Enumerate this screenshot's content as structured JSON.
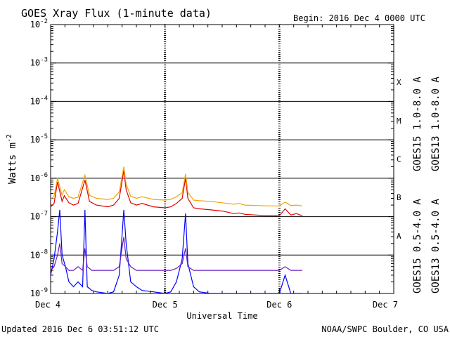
{
  "chart_data": {
    "type": "line",
    "title": "GOES Xray Flux (1-minute data)",
    "begin_label": "Begin:  2016 Dec 4 0000 UTC",
    "xlabel": "Universal Time",
    "ylabel": "Watts m",
    "ylabel_exponent": "-2",
    "x_ticks": [
      "Dec 4",
      "Dec 5",
      "Dec 6",
      "Dec 7"
    ],
    "x_range_days": [
      0,
      3
    ],
    "y_scale": "log",
    "y_range": [
      1e-09,
      0.01
    ],
    "y_tick_base": "10",
    "y_tick_exponents": [
      "-9",
      "-8",
      "-7",
      "-6",
      "-5",
      "-4",
      "-3",
      "-2"
    ],
    "flare_classes": [
      "A",
      "B",
      "C",
      "M",
      "X"
    ],
    "grid": true,
    "updated_label": "Updated 2016 Dec  6 03:51:12 UTC",
    "source_label": "NOAA/SWPC Boulder, CO USA",
    "series": [
      {
        "name": "GOES15 1.0-8.0 A",
        "color": "#e00000",
        "x": [
          0,
          0.03,
          0.06,
          0.1,
          0.12,
          0.16,
          0.2,
          0.24,
          0.3,
          0.34,
          0.4,
          0.5,
          0.55,
          0.6,
          0.64,
          0.66,
          0.7,
          0.75,
          0.8,
          0.9,
          1.0,
          1.05,
          1.1,
          1.15,
          1.18,
          1.2,
          1.25,
          1.3,
          1.4,
          1.5,
          1.55,
          1.6,
          1.65,
          1.7,
          1.8,
          1.9,
          2.0,
          2.05,
          2.1,
          2.15,
          2.2
        ],
        "y": [
          1.8e-07,
          2.2e-07,
          8e-07,
          2.5e-07,
          3.5e-07,
          2.3e-07,
          2e-07,
          2.2e-07,
          9e-07,
          2.5e-07,
          2e-07,
          1.8e-07,
          2e-07,
          3e-07,
          1.6e-06,
          5e-07,
          2.3e-07,
          2e-07,
          2.2e-07,
          1.8e-07,
          1.7e-07,
          1.8e-07,
          2.2e-07,
          3e-07,
          1e-06,
          3e-07,
          1.7e-07,
          1.6e-07,
          1.5e-07,
          1.4e-07,
          1.3e-07,
          1.2e-07,
          1.25e-07,
          1.15e-07,
          1.1e-07,
          1.05e-07,
          1.05e-07,
          1.6e-07,
          1.1e-07,
          1.2e-07,
          1.05e-07
        ]
      },
      {
        "name": "GOES13 1.0-8.0 A",
        "color": "#f5a300",
        "x": [
          0,
          0.03,
          0.06,
          0.1,
          0.12,
          0.16,
          0.2,
          0.24,
          0.3,
          0.34,
          0.4,
          0.5,
          0.55,
          0.6,
          0.64,
          0.66,
          0.7,
          0.75,
          0.8,
          0.9,
          1.0,
          1.05,
          1.1,
          1.15,
          1.18,
          1.2,
          1.25,
          1.3,
          1.4,
          1.5,
          1.55,
          1.6,
          1.65,
          1.7,
          1.8,
          1.9,
          2.0,
          2.05,
          2.1,
          2.15,
          2.2
        ],
        "y": [
          2.8e-07,
          3.4e-07,
          1e-06,
          3.6e-07,
          5e-07,
          3.3e-07,
          3e-07,
          3.2e-07,
          1.2e-06,
          3.6e-07,
          3e-07,
          2.8e-07,
          3e-07,
          4.4e-07,
          2e-06,
          7e-07,
          3.4e-07,
          3e-07,
          3.3e-07,
          2.8e-07,
          2.7e-07,
          2.8e-07,
          3.3e-07,
          4.2e-07,
          1.3e-06,
          4.3e-07,
          2.7e-07,
          2.6e-07,
          2.5e-07,
          2.3e-07,
          2.2e-07,
          2.1e-07,
          2.2e-07,
          2e-07,
          1.95e-07,
          1.9e-07,
          1.9e-07,
          2.4e-07,
          1.95e-07,
          2e-07,
          1.9e-07
        ]
      },
      {
        "name": "GOES15 0.5-4.0 A",
        "color": "#0000ff",
        "x": [
          0,
          0.03,
          0.06,
          0.08,
          0.1,
          0.13,
          0.16,
          0.2,
          0.24,
          0.28,
          0.3,
          0.32,
          0.36,
          0.4,
          0.5,
          0.55,
          0.6,
          0.64,
          0.66,
          0.7,
          0.75,
          0.8,
          0.9,
          1.0,
          1.05,
          1.1,
          1.15,
          1.18,
          1.2,
          1.25,
          1.3,
          1.4,
          1.5,
          1.6,
          1.7,
          1.8,
          1.9,
          2.0,
          2.05,
          2.1,
          2.2
        ],
        "y": [
          3e-09,
          8e-09,
          4e-08,
          1.5e-07,
          1e-08,
          5e-09,
          2e-09,
          1.5e-09,
          2e-09,
          1.5e-09,
          1.5e-07,
          1.5e-09,
          1.2e-09,
          1.1e-09,
          1e-09,
          1.1e-09,
          3e-09,
          1.5e-07,
          2e-08,
          2e-09,
          1.5e-09,
          1.2e-09,
          1.1e-09,
          1e-09,
          1.1e-09,
          2e-09,
          8e-09,
          1.2e-07,
          6e-09,
          1.5e-09,
          1.1e-09,
          1e-09,
          1e-09,
          1e-09,
          1e-09,
          1e-09,
          1e-09,
          1e-09,
          3e-09,
          1e-09,
          1e-09
        ]
      },
      {
        "name": "GOES13 0.5-4.0 A",
        "color": "#6a1fbf",
        "x": [
          0,
          0.03,
          0.06,
          0.08,
          0.1,
          0.13,
          0.16,
          0.2,
          0.24,
          0.28,
          0.3,
          0.32,
          0.36,
          0.4,
          0.5,
          0.55,
          0.6,
          0.64,
          0.66,
          0.7,
          0.75,
          0.8,
          0.9,
          1.0,
          1.05,
          1.1,
          1.15,
          1.18,
          1.2,
          1.25,
          1.3,
          1.4,
          1.5,
          1.6,
          1.7,
          1.8,
          1.9,
          2.0,
          2.05,
          2.1,
          2.2
        ],
        "y": [
          4e-09,
          5e-09,
          1e-08,
          2e-08,
          6e-09,
          5e-09,
          4e-09,
          4e-09,
          5e-09,
          4e-09,
          1.5e-08,
          5e-09,
          4e-09,
          4e-09,
          4e-09,
          4e-09,
          5e-09,
          3e-08,
          8e-09,
          5e-09,
          4e-09,
          4e-09,
          4e-09,
          4e-09,
          4e-09,
          4.5e-09,
          6e-09,
          1.5e-08,
          5e-09,
          4e-09,
          4e-09,
          4e-09,
          4e-09,
          4e-09,
          4e-09,
          4e-09,
          4e-09,
          4e-09,
          5e-09,
          4e-09,
          4e-09
        ]
      }
    ]
  }
}
